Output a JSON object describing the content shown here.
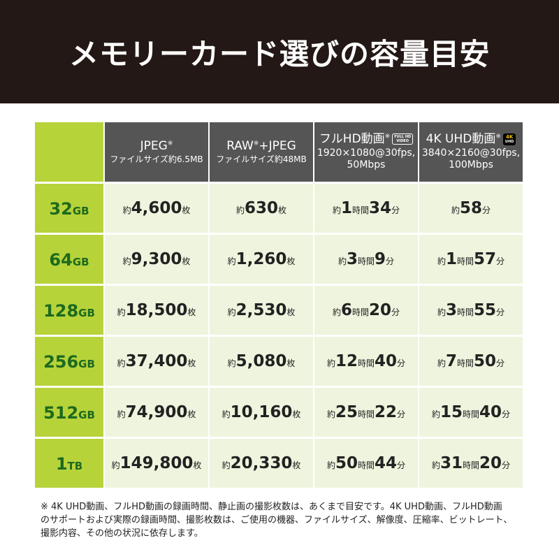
{
  "header": {
    "title": "メモリーカード選びの容量目安"
  },
  "table": {
    "columns": [
      {
        "title": [
          "JPEG",
          "※"
        ],
        "badge": [],
        "sub": [
          "ファイルサイズ約6.5MB"
        ]
      },
      {
        "title": [
          "RAW",
          "※",
          "+JPEG"
        ],
        "badge": [],
        "sub": [
          "ファイルサイズ約48MB"
        ]
      },
      {
        "title": [
          "フルHD動画",
          "※"
        ],
        "badge": [
          "FULL HD",
          "VIDEO"
        ],
        "sub": [
          "1920×1080@30fps,",
          "50Mbps"
        ]
      },
      {
        "title": [
          "4K UHD動画",
          "※"
        ],
        "badge": [
          "4K",
          "UHD"
        ],
        "sub": [
          "3840×2160@30fps,",
          "100Mbps"
        ]
      }
    ],
    "rows": [
      {
        "label": [
          "32",
          "GB"
        ],
        "cells": [
          [
            "約",
            "4,600",
            "枚"
          ],
          [
            "約",
            "630",
            "枚"
          ],
          [
            "約",
            "1",
            "時間",
            "34",
            "分"
          ],
          [
            "約",
            "58",
            "分"
          ]
        ]
      },
      {
        "label": [
          "64",
          "GB"
        ],
        "cells": [
          [
            "約",
            "9,300",
            "枚"
          ],
          [
            "約",
            "1,260",
            "枚"
          ],
          [
            "約",
            "3",
            "時間",
            "9",
            "分"
          ],
          [
            "約",
            "1",
            "時間",
            "57",
            "分"
          ]
        ]
      },
      {
        "label": [
          "128",
          "GB"
        ],
        "cells": [
          [
            "約",
            "18,500",
            "枚"
          ],
          [
            "約",
            "2,530",
            "枚"
          ],
          [
            "約",
            "6",
            "時間",
            "20",
            "分"
          ],
          [
            "約",
            "3",
            "時間",
            "55",
            "分"
          ]
        ]
      },
      {
        "label": [
          "256",
          "GB"
        ],
        "cells": [
          [
            "約",
            "37,400",
            "枚"
          ],
          [
            "約",
            "5,080",
            "枚"
          ],
          [
            "約",
            "12",
            "時間",
            "40",
            "分"
          ],
          [
            "約",
            "7",
            "時間",
            "50",
            "分"
          ]
        ]
      },
      {
        "label": [
          "512",
          "GB"
        ],
        "cells": [
          [
            "約",
            "74,900",
            "枚"
          ],
          [
            "約",
            "10,160",
            "枚"
          ],
          [
            "約",
            "25",
            "時間",
            "22",
            "分"
          ],
          [
            "約",
            "15",
            "時間",
            "40",
            "分"
          ]
        ]
      },
      {
        "label": [
          "1",
          "TB"
        ],
        "cells": [
          [
            "約",
            "149,800",
            "枚"
          ],
          [
            "約",
            "20,330",
            "枚"
          ],
          [
            "約",
            "50",
            "時間",
            "44",
            "分"
          ],
          [
            "約",
            "31",
            "時間",
            "20",
            "分"
          ]
        ]
      }
    ]
  },
  "footnote": [
    "※ 4K UHD動画、フルHD動画の録画時間、静止画の撮影枚数は、あくまで目安です。4K UHD動画、フルHD動画",
    "のサポートおよび実際の録画時間、撮影枚数は、ご使用の機器、ファイルサイズ、解像度、圧縮率、ビットレート、",
    "撮影内容、その他の状況に依存します。"
  ]
}
